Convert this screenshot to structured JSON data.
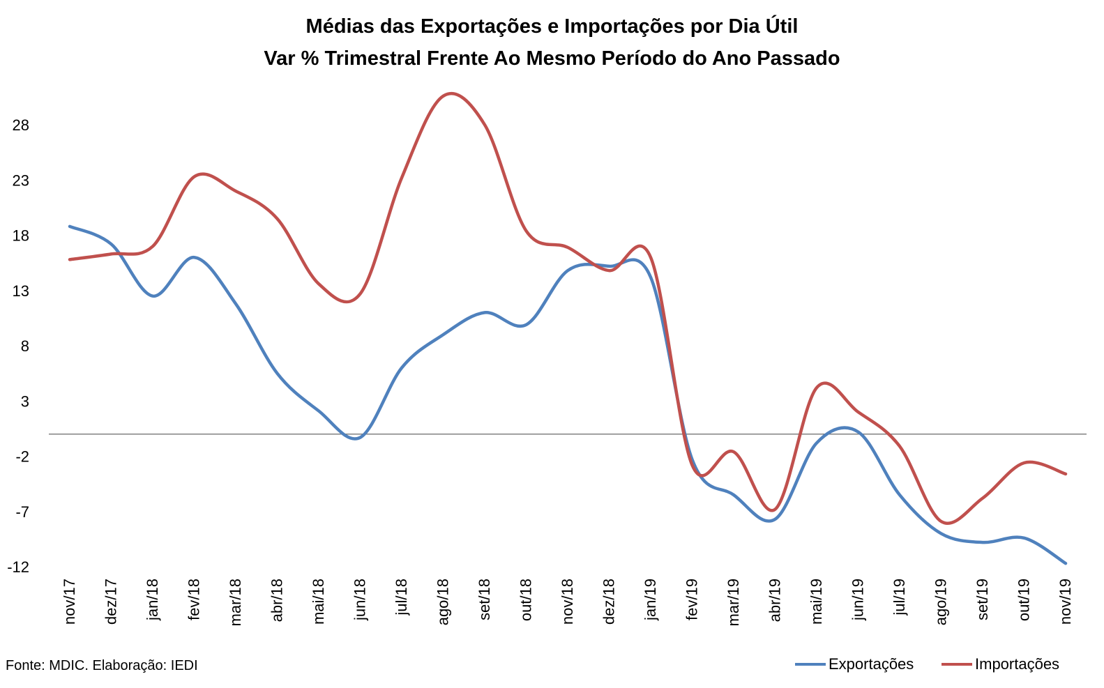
{
  "title_line1": "Médias das Exportações e Importações por Dia Útil",
  "title_line2": "Var % Trimestral Frente Ao Mesmo Período do Ano Passado",
  "source": "Fonte: MDIC. Elaboração: IEDI",
  "chart_data": {
    "type": "line",
    "categories": [
      "nov/17",
      "dez/17",
      "jan/18",
      "fev/18",
      "mar/18",
      "abr/18",
      "mai/18",
      "jun/18",
      "jul/18",
      "ago/18",
      "set/18",
      "out/18",
      "nov/18",
      "dez/18",
      "jan/19",
      "fev/19",
      "mar/19",
      "abr/19",
      "mai/19",
      "jun/19",
      "jul/19",
      "ago/19",
      "set/19",
      "out/19",
      "nov/19"
    ],
    "series": [
      {
        "name": "Exportações",
        "color": "#4F81BD",
        "values": [
          18.8,
          17.2,
          12.5,
          16.0,
          11.8,
          5.5,
          2.1,
          -0.3,
          6.0,
          9.0,
          11.0,
          9.9,
          14.8,
          15.2,
          14.2,
          -2.3,
          -5.5,
          -7.7,
          -0.8,
          0.2,
          -5.5,
          -9.0,
          -9.8,
          -9.4,
          -11.7
        ]
      },
      {
        "name": "Importações",
        "color": "#C0504D",
        "values": [
          15.8,
          16.3,
          17.0,
          23.3,
          22.0,
          19.5,
          13.6,
          12.7,
          23.2,
          30.6,
          28.0,
          18.4,
          16.9,
          14.8,
          16.0,
          -2.8,
          -1.6,
          -6.8,
          4.2,
          2.0,
          -1.1,
          -7.9,
          -5.8,
          -2.6,
          -3.6
        ]
      }
    ],
    "yticks": [
      28,
      23,
      18,
      13,
      8,
      3,
      -2,
      -7,
      -12
    ],
    "ylim": [
      -12,
      31
    ],
    "zero_line": true,
    "grid": false,
    "legend_position": "bottom-right"
  }
}
